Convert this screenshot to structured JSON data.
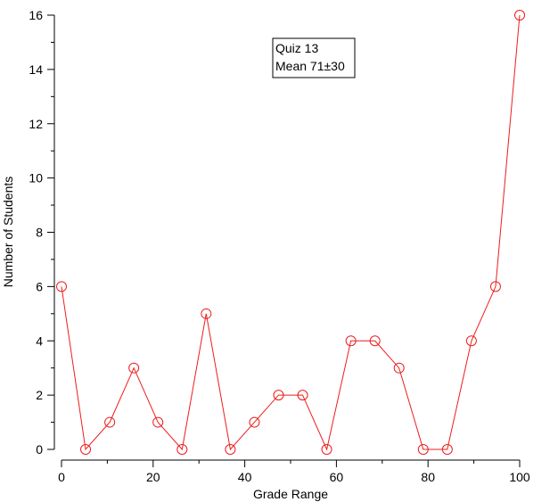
{
  "chart_data": {
    "type": "line",
    "title": "",
    "xlabel": "Grade Range",
    "ylabel": "Number of Students",
    "xlim": [
      0,
      100
    ],
    "ylim": [
      0,
      16
    ],
    "xticks": [
      0,
      20,
      40,
      60,
      80,
      100
    ],
    "yticks": [
      0,
      2,
      4,
      6,
      8,
      10,
      12,
      14,
      16
    ],
    "grid": false,
    "legend_position": "top-center",
    "annotation": {
      "line1": "Quiz 13",
      "line2": "Mean 71±30"
    },
    "series": [
      {
        "color": "#ee1c1c",
        "marker": "open-circle",
        "x": [
          0,
          5.26,
          10.53,
          15.79,
          21.05,
          26.32,
          31.58,
          36.84,
          42.11,
          47.37,
          52.63,
          57.89,
          63.16,
          68.42,
          73.68,
          78.95,
          84.21,
          89.47,
          94.74,
          100
        ],
        "y": [
          6,
          0,
          1,
          3,
          1,
          0,
          5,
          0,
          1,
          2,
          2,
          0,
          4,
          4,
          3,
          0,
          0,
          4,
          6,
          16
        ]
      }
    ]
  }
}
